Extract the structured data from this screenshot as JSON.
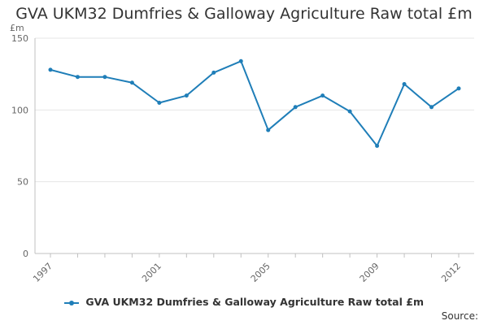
{
  "chart_data": {
    "type": "line",
    "title": "GVA UKM32 Dumfries & Galloway Agriculture Raw total £m",
    "ylabel": "£m",
    "xlabel": "",
    "x": [
      1997,
      1998,
      1999,
      2000,
      2001,
      2002,
      2003,
      2004,
      2005,
      2006,
      2007,
      2008,
      2009,
      2010,
      2011,
      2012
    ],
    "x_tick_labels": [
      "1997",
      "2001",
      "2005",
      "2009",
      "2012"
    ],
    "y_tick_labels": [
      "0",
      "50",
      "100",
      "150"
    ],
    "ylim": [
      0,
      150
    ],
    "grid": "horizontal",
    "legend_position": "bottom",
    "series": [
      {
        "name": "GVA UKM32 Dumfries & Galloway Agriculture Raw total £m",
        "color": "#1f7eb8",
        "values": [
          128,
          123,
          123,
          119,
          105,
          110,
          126,
          134,
          86,
          102,
          110,
          99,
          75,
          118,
          102,
          115
        ]
      }
    ]
  },
  "source_label": "Source:"
}
